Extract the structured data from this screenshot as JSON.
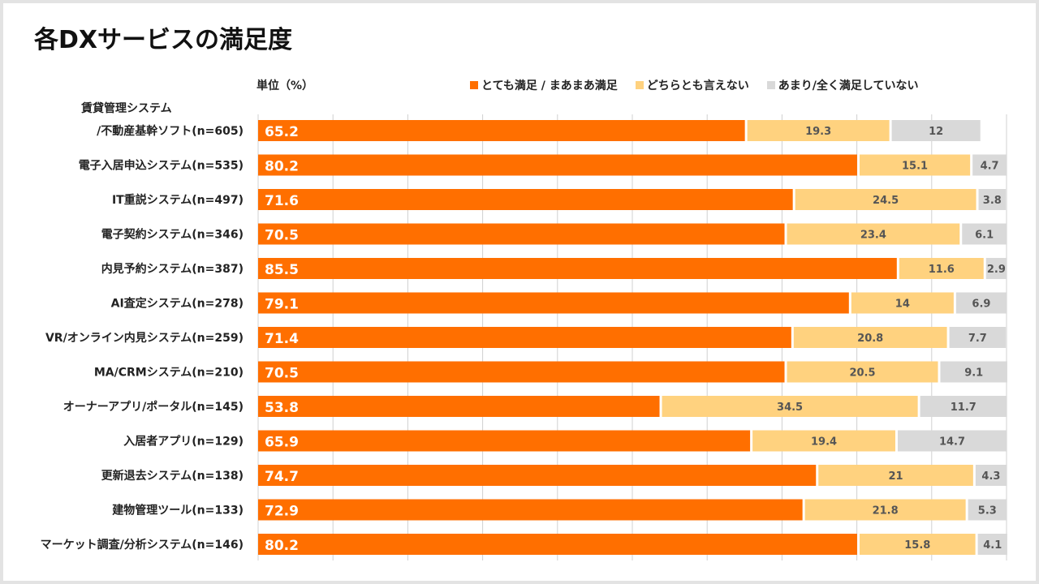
{
  "title": "各DXサービスの満足度",
  "unit_label": "単位（%）",
  "colors": {
    "satisfied": "#ff6f00",
    "neutral": "#ffd27f",
    "dissatisfied": "#d9d9d9",
    "grid": "#d0d0d0"
  },
  "legend": [
    {
      "label": "とても満足 / まあまあ満足",
      "color": "#ff6f00"
    },
    {
      "label": "どちらとも言えない",
      "color": "#ffd27f"
    },
    {
      "label": "あまり/全く満足していない",
      "color": "#d9d9d9"
    }
  ],
  "chart_data": {
    "type": "bar",
    "orientation": "horizontal",
    "stacked": true,
    "title": "各DXサービスの満足度",
    "xlabel": "",
    "ylabel": "",
    "xlim": [
      0,
      100
    ],
    "grid": true,
    "legend_position": "top",
    "categories": [
      [
        "賃貸管理システム",
        "/不動産基幹ソフト(n=605)"
      ],
      [
        "電子入居申込システム(n=535)"
      ],
      [
        "IT重説システム(n=497)"
      ],
      [
        "電子契約システム(n=346)"
      ],
      [
        "内見予約システム(n=387)"
      ],
      [
        "AI査定システム(n=278)"
      ],
      [
        "VR/オンライン内見システム(n=259)"
      ],
      [
        "MA/CRMシステム(n=210)"
      ],
      [
        "オーナーアプリ/ポータル(n=145)"
      ],
      [
        "入居者アプリ(n=129)"
      ],
      [
        "更新退去システム(n=138)"
      ],
      [
        "建物管理ツール(n=133)"
      ],
      [
        "マーケット調査/分析システム(n=146)"
      ]
    ],
    "series": [
      {
        "name": "とても満足 / まあまあ満足",
        "values": [
          65.2,
          80.2,
          71.6,
          70.5,
          85.5,
          79.1,
          71.4,
          70.5,
          53.8,
          65.9,
          74.7,
          72.9,
          80.2
        ]
      },
      {
        "name": "どちらとも言えない",
        "values": [
          19.3,
          15.1,
          24.5,
          23.4,
          11.6,
          14,
          20.8,
          20.5,
          34.5,
          19.4,
          21,
          21.8,
          15.8
        ]
      },
      {
        "name": "あまり/全く満足していない",
        "values": [
          12,
          4.7,
          3.8,
          6.1,
          2.9,
          6.9,
          7.7,
          9.1,
          11.7,
          14.7,
          4.3,
          5.3,
          4.1
        ]
      }
    ]
  }
}
